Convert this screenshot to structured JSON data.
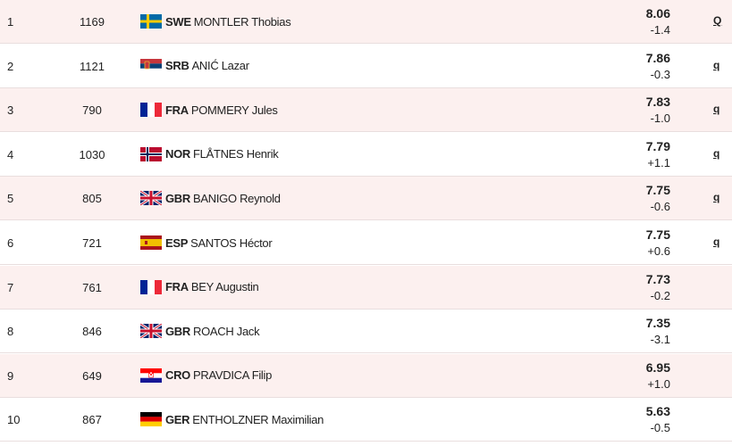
{
  "table": {
    "rows": [
      {
        "rank": 1,
        "bib": 1169,
        "country": "SWE",
        "name": "MONTLER Thobias",
        "mark": 8.06,
        "wind": "-1.4",
        "qual": "Q"
      },
      {
        "rank": 2,
        "bib": 1121,
        "country": "SRB",
        "name": "ANIĆ Lazar",
        "mark": 7.86,
        "wind": "-0.3",
        "qual": "q"
      },
      {
        "rank": 3,
        "bib": 790,
        "country": "FRA",
        "name": "POMMERY Jules",
        "mark": 7.83,
        "wind": "-1.0",
        "qual": "q"
      },
      {
        "rank": 4,
        "bib": 1030,
        "country": "NOR",
        "name": "FLÅTNES Henrik",
        "mark": 7.79,
        "wind": "+1.1",
        "qual": "q"
      },
      {
        "rank": 5,
        "bib": 805,
        "country": "GBR",
        "name": "BANIGO Reynold",
        "mark": 7.75,
        "wind": "-0.6",
        "qual": "q"
      },
      {
        "rank": 6,
        "bib": 721,
        "country": "ESP",
        "name": "SANTOS Héctor",
        "mark": 7.75,
        "wind": "+0.6",
        "qual": "q"
      },
      {
        "rank": 7,
        "bib": 761,
        "country": "FRA",
        "name": "BEY Augustin",
        "mark": 7.73,
        "wind": "-0.2"
      },
      {
        "rank": 8,
        "bib": 846,
        "country": "GBR",
        "name": "ROACH Jack",
        "mark": 7.35,
        "wind": "-3.1"
      },
      {
        "rank": 9,
        "bib": 649,
        "country": "CRO",
        "name": "PRAVDICA Filip",
        "mark": 6.95,
        "wind": "+1.0"
      },
      {
        "rank": 10,
        "bib": 867,
        "country": "GER",
        "name": "ENTHOLZNER Maximilian",
        "mark": 5.63,
        "wind": "-0.5"
      }
    ]
  }
}
